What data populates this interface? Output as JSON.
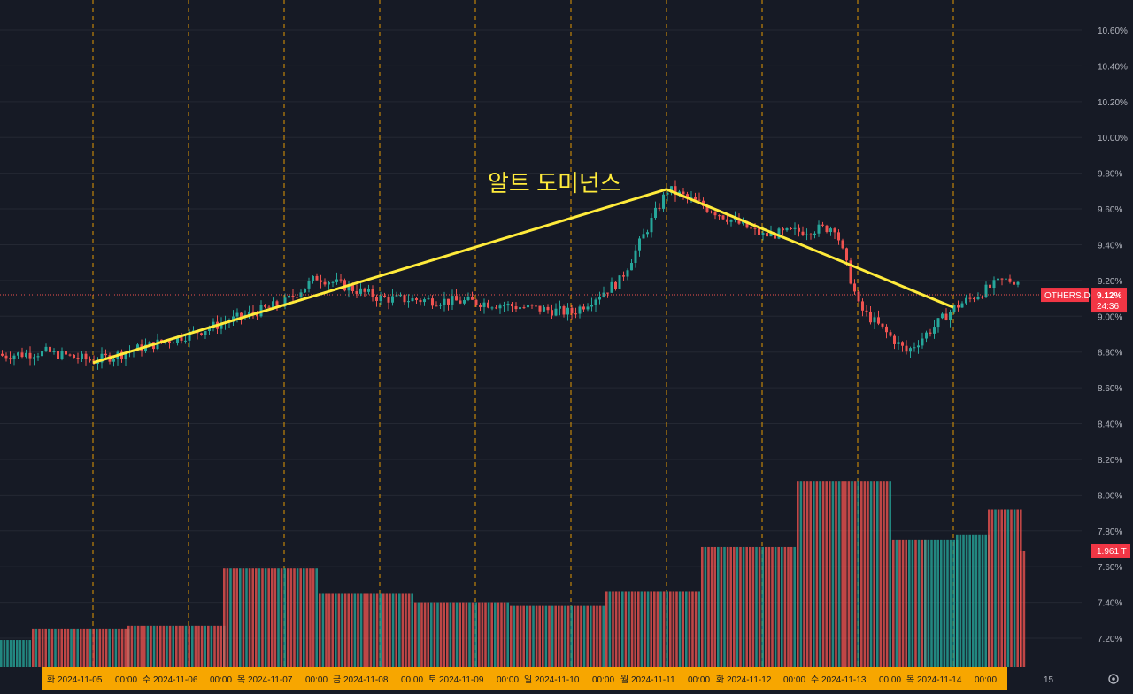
{
  "annotation_text": "알트 도미넌스",
  "price_axis": {
    "ticks": [
      "10.60%",
      "10.40%",
      "10.20%",
      "10.00%",
      "9.80%",
      "9.60%",
      "9.40%",
      "9.20%",
      "9.00%",
      "8.80%",
      "8.60%",
      "8.40%",
      "8.20%",
      "8.00%",
      "7.80%",
      "7.60%",
      "7.40%",
      "7.20%"
    ],
    "last_price_label": "9.12%",
    "countdown": "24:36",
    "symbol_label": "OTHERS.D",
    "volume_label": "1.961 T"
  },
  "time_axis": {
    "labels": [
      {
        "text": "화 2024-11-05",
        "highlighted": true
      },
      {
        "text": "00:00",
        "highlighted": true
      },
      {
        "text": "수 2024-11-06",
        "highlighted": true
      },
      {
        "text": "00:00",
        "highlighted": true
      },
      {
        "text": "목 2024-11-07",
        "highlighted": true
      },
      {
        "text": "00:00",
        "highlighted": true
      },
      {
        "text": "금 2024-11-08",
        "highlighted": true
      },
      {
        "text": "00:00",
        "highlighted": true
      },
      {
        "text": "토 2024-11-09",
        "highlighted": true
      },
      {
        "text": "00:00",
        "highlighted": true
      },
      {
        "text": "일 2024-11-10",
        "highlighted": true
      },
      {
        "text": "00:00",
        "highlighted": true
      },
      {
        "text": "월 2024-11-11",
        "highlighted": true
      },
      {
        "text": "00:00",
        "highlighted": true
      },
      {
        "text": "화 2024-11-12",
        "highlighted": true
      },
      {
        "text": "00:00",
        "highlighted": true
      },
      {
        "text": "수 2024-11-13",
        "highlighted": true
      },
      {
        "text": "00:00",
        "highlighted": true
      },
      {
        "text": "목 2024-11-14",
        "highlighted": true
      },
      {
        "text": "00:00",
        "highlighted": true
      },
      {
        "text": "15",
        "highlighted": false
      }
    ]
  },
  "trend_line": [
    {
      "t": "2024-11-05 00:00",
      "price": 8.74
    },
    {
      "t": "2024-11-11 00:00",
      "price": 9.71
    },
    {
      "t": "2024-11-14 00:00",
      "price": 9.05
    }
  ],
  "volume_blocks": [
    {
      "label": "11-04",
      "value": 7.19,
      "color": "teal"
    },
    {
      "label": "11-05a",
      "value": 7.25,
      "color": "mixed"
    },
    {
      "label": "11-05b",
      "value": 7.27,
      "color": "mixed"
    },
    {
      "label": "11-06",
      "value": 7.59,
      "color": "mixed"
    },
    {
      "label": "11-07",
      "value": 7.45,
      "color": "mixed"
    },
    {
      "label": "11-08",
      "value": 7.4,
      "color": "mixed"
    },
    {
      "label": "11-09",
      "value": 7.38,
      "color": "mixed"
    },
    {
      "label": "11-10",
      "value": 7.46,
      "color": "mixed"
    },
    {
      "label": "11-11",
      "value": 7.71,
      "color": "mixed"
    },
    {
      "label": "11-12",
      "value": 8.08,
      "color": "mixed"
    },
    {
      "label": "11-13a",
      "value": 7.75,
      "color": "mixed"
    },
    {
      "label": "11-13b",
      "value": 7.75,
      "color": "teal"
    },
    {
      "label": "11-14a",
      "value": 7.78,
      "color": "teal"
    },
    {
      "label": "11-14b",
      "value": 7.92,
      "color": "mixed"
    },
    {
      "label": "11-14c",
      "value": 7.69,
      "color": "red"
    }
  ],
  "colors": {
    "background": "#161a25",
    "grid": "#242833",
    "up": "#26a69a",
    "down": "#ef5350",
    "trend": "#ffeb3b",
    "day_separator": "#f7a600",
    "axis_highlight": "#f7a600",
    "price_label_bg": "#f23645"
  },
  "icons": {
    "settings": "gear-icon"
  },
  "chart_data": {
    "type": "line",
    "title": "",
    "ylabel": "",
    "x": [
      "11-04 12:00",
      "11-05 00:00",
      "11-06 00:00",
      "11-07 00:00",
      "11-07 08:00",
      "11-08 00:00",
      "11-09 00:00",
      "11-10 00:00",
      "11-10 12:00",
      "11-11 00:00",
      "11-11 06:00",
      "11-12 00:00",
      "11-12 18:00",
      "11-13 00:00",
      "11-13 12:00",
      "11-14 00:00",
      "11-14 12:00"
    ],
    "series": [
      {
        "values": [
          8.8,
          8.75,
          8.9,
          9.08,
          9.22,
          9.1,
          9.08,
          9.02,
          9.2,
          9.71,
          9.65,
          9.45,
          9.5,
          9.05,
          8.8,
          9.05,
          9.2
        ]
      }
    ],
    "ylim": [
      7.05,
      10.7
    ]
  }
}
